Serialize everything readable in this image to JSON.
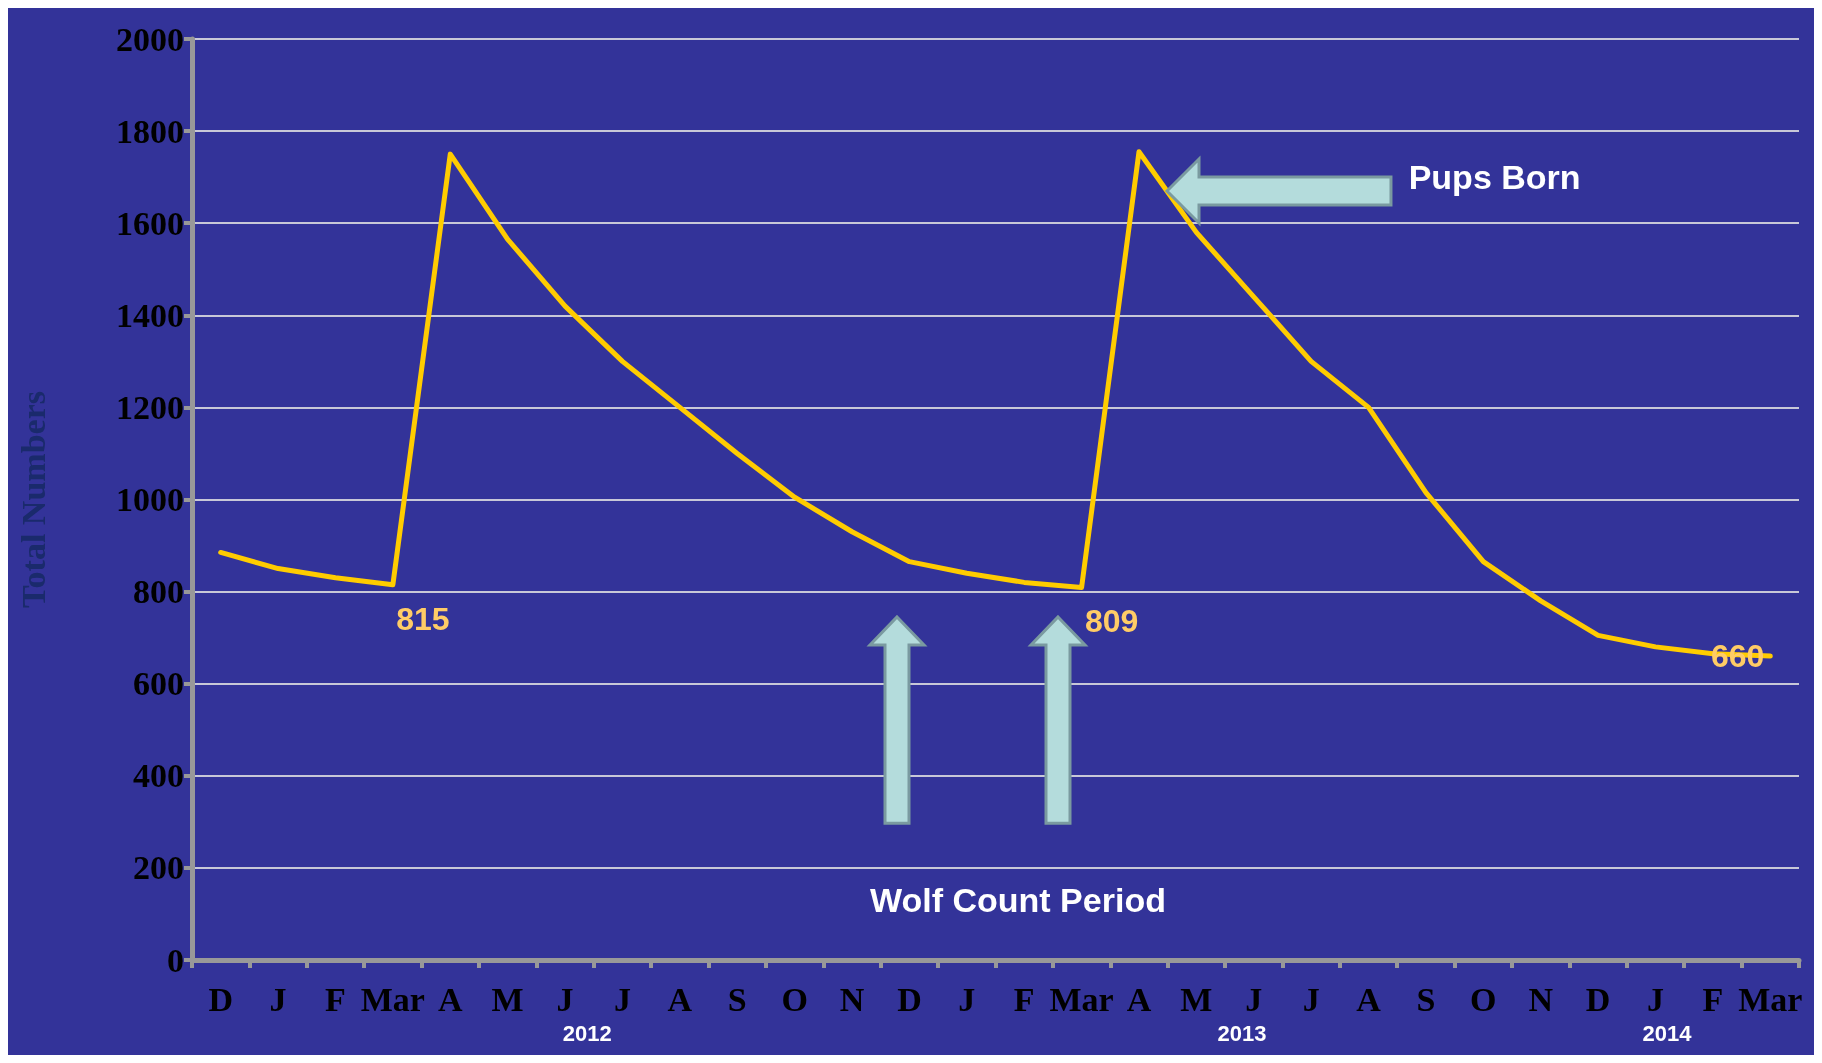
{
  "chart_data": {
    "type": "line",
    "ylabel": "Total Numbers",
    "categories": [
      "D",
      "J",
      "F",
      "Mar",
      "A",
      "M",
      "J",
      "J",
      "A",
      "S",
      "O",
      "N",
      "D",
      "J",
      "F",
      "Mar",
      "A",
      "M",
      "J",
      "J",
      "A",
      "S",
      "O",
      "N",
      "D",
      "J",
      "F",
      "Mar"
    ],
    "series": [
      {
        "color": "#ffcc00",
        "values": [
          885,
          850,
          830,
          815,
          1750,
          1565,
          1420,
          1300,
          1200,
          1100,
          1005,
          930,
          865,
          840,
          820,
          809,
          1755,
          1580,
          1440,
          1300,
          1200,
          1015,
          865,
          780,
          705,
          680,
          665,
          660
        ],
        "value_labels": [
          null,
          null,
          null,
          "815",
          null,
          null,
          null,
          null,
          null,
          null,
          null,
          null,
          null,
          null,
          null,
          "809",
          null,
          null,
          null,
          null,
          null,
          null,
          null,
          null,
          null,
          null,
          null,
          "660"
        ]
      }
    ],
    "ylim": [
      0,
      2000
    ],
    "yticks": [
      0,
      200,
      400,
      600,
      800,
      1000,
      1200,
      1400,
      1600,
      1800,
      2000
    ],
    "grid": "y",
    "marker": "none",
    "line_style": "solid",
    "annotations": [
      "Pups Born",
      "Wolf Count Period",
      "2012",
      "2013",
      "2014"
    ]
  }
}
